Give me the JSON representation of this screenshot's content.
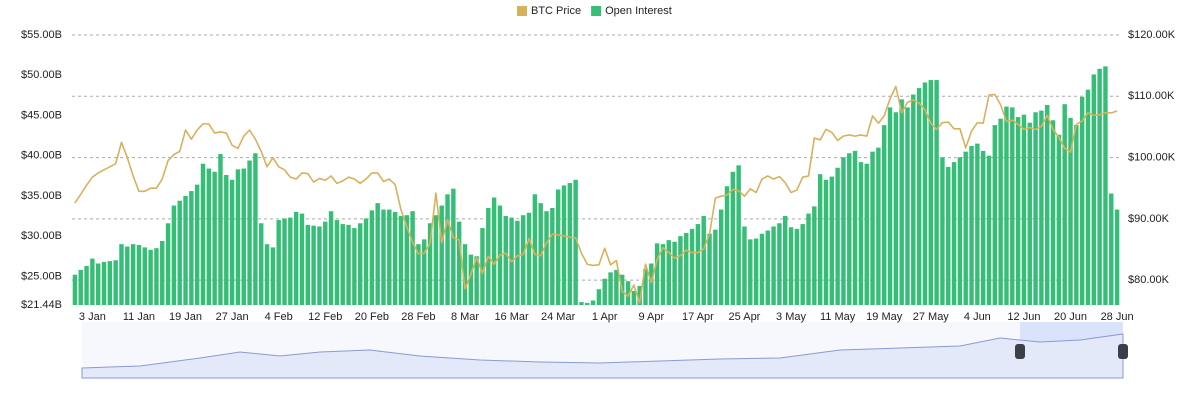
{
  "chart_data": {
    "type": "combo",
    "categories": [
      null,
      null,
      null,
      "3 Jan",
      null,
      null,
      null,
      null,
      null,
      null,
      null,
      "11 Jan",
      null,
      null,
      null,
      null,
      null,
      null,
      null,
      "19 Jan",
      null,
      null,
      null,
      null,
      null,
      null,
      null,
      "27 Jan",
      null,
      null,
      null,
      null,
      null,
      null,
      null,
      "4 Feb",
      null,
      null,
      null,
      null,
      null,
      null,
      null,
      "12 Feb",
      null,
      null,
      null,
      null,
      null,
      null,
      null,
      "20 Feb",
      null,
      null,
      null,
      null,
      null,
      null,
      null,
      "28 Feb",
      null,
      null,
      null,
      null,
      null,
      null,
      null,
      "8 Mar",
      null,
      null,
      null,
      null,
      null,
      null,
      null,
      "16 Mar",
      null,
      null,
      null,
      null,
      null,
      null,
      null,
      "24 Mar",
      null,
      null,
      null,
      null,
      null,
      null,
      null,
      "1 Apr",
      null,
      null,
      null,
      null,
      null,
      null,
      null,
      "9 Apr",
      null,
      null,
      null,
      null,
      null,
      null,
      null,
      "17 Apr",
      null,
      null,
      null,
      null,
      null,
      null,
      null,
      "25 Apr",
      null,
      null,
      null,
      null,
      null,
      null,
      null,
      "3 May",
      null,
      null,
      null,
      null,
      null,
      null,
      null,
      "11 May",
      null,
      null,
      null,
      null,
      null,
      null,
      null,
      "19 May",
      null,
      null,
      null,
      null,
      null,
      null,
      null,
      "27 May",
      null,
      null,
      null,
      null,
      null,
      null,
      null,
      "4 Jun",
      null,
      null,
      null,
      null,
      null,
      null,
      null,
      "12 Jun",
      null,
      null,
      null,
      null,
      null,
      null,
      null,
      "20 Jun",
      null,
      null,
      null,
      null,
      null,
      null,
      null,
      "28 Jun"
    ],
    "series": [
      {
        "name": "BTC Price",
        "type": "line",
        "axis": "y2",
        "color": "#d8b15c",
        "values": [
          92.6,
          94,
          95.5,
          96.8,
          97.5,
          98,
          98.5,
          99,
          102.5,
          100,
          97,
          94.5,
          94.5,
          95,
          95,
          96.5,
          99.5,
          100.5,
          101,
          104.5,
          103,
          104.5,
          105.5,
          105.5,
          104,
          104.2,
          104,
          102,
          101.5,
          103.5,
          104.5,
          103,
          101,
          98.5,
          100,
          98.5,
          98,
          96.8,
          96.5,
          97.5,
          97.4,
          96,
          96.6,
          96.3,
          97,
          95.8,
          96.2,
          96.8,
          96.5,
          95.8,
          96.5,
          97.5,
          97.5,
          96.1,
          96.5,
          95.6,
          91.5,
          88.7,
          86.2,
          84.3,
          84.4,
          86,
          94.2,
          86.1,
          89.9,
          86.9,
          86.6,
          78.6,
          80.9,
          83.7,
          81.1,
          83.9,
          82.6,
          84.1,
          84.4,
          83,
          84,
          84.2,
          86.8,
          84.2,
          84,
          86.1,
          87.5,
          87.4,
          87.2,
          87,
          86.9,
          84.4,
          82.6,
          82.4,
          82.5,
          85.2,
          82.5,
          83.2,
          78.2,
          77.4,
          79.2,
          76.3,
          82.6,
          79.6,
          83.4,
          85.3,
          84.5,
          83.6,
          84,
          84.9,
          84.5,
          84.5,
          85.1,
          87.5,
          93.4,
          93.7,
          93.9,
          94.8,
          94.6,
          93.7,
          94.9,
          94.3,
          96.5,
          97,
          96.5,
          96.9,
          95.9,
          94.3,
          94.7,
          96.8,
          97,
          103.2,
          102.9,
          104.6,
          104.1,
          102.8,
          103.5,
          103.7,
          103.5,
          103.7,
          103.5,
          106.8,
          105.6,
          106.8,
          109.6,
          111.6,
          107.3,
          109,
          109.4,
          108.9,
          107.8,
          105.6,
          104.6,
          105.7,
          105.8,
          104.7,
          104.7,
          101.6,
          104.3,
          105.7,
          105.6,
          110.2,
          110.3,
          108.6,
          105.9,
          106.1,
          105.4,
          104.6,
          104.9,
          104.6,
          105.1,
          106.9,
          104.6,
          103.3,
          101.5,
          100.9,
          105.4,
          106,
          107.3,
          106.9,
          107,
          107.3,
          107.3,
          107.6
        ]
      },
      {
        "name": "Open Interest",
        "type": "bar",
        "axis": "y",
        "color": "#35bf76",
        "values": [
          25.2,
          25.8,
          26.3,
          27.2,
          26.6,
          26.8,
          26.9,
          27.0,
          29.0,
          28.7,
          29.0,
          28.9,
          28.6,
          28.3,
          28.5,
          29.4,
          31.6,
          33.8,
          34.4,
          35.0,
          35.6,
          36.4,
          39.0,
          38.4,
          38.0,
          40.2,
          37.6,
          37.0,
          38.3,
          38.4,
          39.4,
          40.3,
          31.6,
          29.0,
          28.6,
          32.0,
          32.2,
          32.3,
          33.0,
          32.8,
          31.4,
          31.3,
          31.2,
          31.8,
          33.1,
          32.0,
          31.5,
          31.4,
          31.0,
          31.6,
          32.2,
          33.2,
          34.1,
          33.3,
          33.3,
          33.0,
          32.5,
          32.6,
          33.1,
          29.0,
          29.6,
          31.6,
          32.6,
          33.8,
          35.2,
          35.9,
          31.8,
          29.0,
          27.7,
          27.5,
          31.0,
          33.5,
          34.8,
          33.8,
          32.5,
          32.3,
          31.9,
          32.6,
          32.9,
          35.2,
          34.1,
          33.1,
          33.5,
          35.8,
          36.3,
          36.6,
          37.0,
          21.8,
          21.7,
          22.0,
          23.4,
          24.7,
          25.5,
          25.8,
          25.2,
          24.4,
          23.2,
          23.8,
          25.9,
          26.6,
          29.1,
          29.0,
          29.5,
          29.3,
          30.0,
          30.4,
          30.9,
          31.5,
          32.5,
          30.3,
          30.8,
          33.3,
          36.2,
          38.0,
          38.8,
          31.2,
          29.6,
          29.7,
          30.3,
          30.7,
          31.2,
          31.6,
          32.5,
          31.1,
          30.9,
          31.5,
          32.8,
          33.7,
          37.7,
          37.0,
          37.4,
          38.5,
          39.8,
          40.3,
          40.6,
          39.2,
          39.0,
          40.5,
          41.0,
          43.8,
          46.0,
          45.4,
          47.0,
          46.0,
          47.6,
          48.4,
          49.1,
          49.4,
          49.4,
          39.8,
          38.6,
          39.2,
          39.8,
          40.5,
          41.2,
          41.5,
          40.6,
          40.0,
          43.8,
          44.6,
          46.1,
          46.0,
          44.8,
          45.1,
          44.1,
          45.4,
          45.6,
          46.3,
          44.4,
          42.6,
          46.4,
          44.7,
          43.8,
          47.3,
          48.2,
          50.1,
          50.8,
          51.1,
          35.3,
          33.3
        ]
      }
    ],
    "ylim": [
      21.44,
      55
    ],
    "yticks": [
      {
        "value": 21.44,
        "label": "$21.44B"
      },
      {
        "value": 25,
        "label": "$25.00B"
      },
      {
        "value": 30,
        "label": "$30.00B"
      },
      {
        "value": 35,
        "label": "$35.00B"
      },
      {
        "value": 40,
        "label": "$40.00B"
      },
      {
        "value": 45,
        "label": "$45.00B"
      },
      {
        "value": 50,
        "label": "$50.00B"
      },
      {
        "value": 55,
        "label": "$55.00B"
      }
    ],
    "y2lim": [
      75.95,
      120
    ],
    "y2ticks": [
      {
        "value": 80,
        "label": "$80.00K"
      },
      {
        "value": 90,
        "label": "$90.00K"
      },
      {
        "value": 100,
        "label": "$100.00K"
      },
      {
        "value": 110,
        "label": "$110.00K"
      },
      {
        "value": 120,
        "label": "$120.00K"
      }
    ],
    "grid": "y2",
    "legend": "top"
  }
}
